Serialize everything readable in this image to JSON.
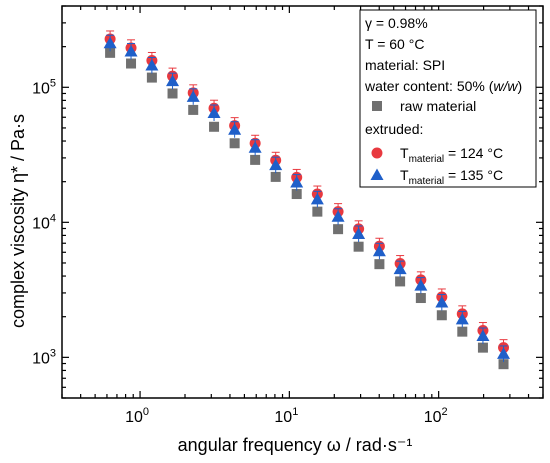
{
  "chart_data": {
    "type": "scatter",
    "xscale": "log",
    "yscale": "log",
    "xlim": [
      0.3,
      500
    ],
    "ylim": [
      500,
      400000
    ],
    "xlabel": "angular frequency ω / rad·s⁻¹",
    "ylabel": "complex viscosity η* / Pa·s",
    "grid": false,
    "legend_position": "top-right",
    "x_ticks": [
      {
        "value": 1,
        "base": "10",
        "exp": "0"
      },
      {
        "value": 10,
        "base": "10",
        "exp": "1"
      },
      {
        "value": 100,
        "base": "10",
        "exp": "2"
      }
    ],
    "y_ticks": [
      {
        "value": 1000,
        "base": "10",
        "exp": "3"
      },
      {
        "value": 10000,
        "base": "10",
        "exp": "4"
      },
      {
        "value": 100000,
        "base": "10",
        "exp": "5"
      }
    ],
    "legend": {
      "header_lines": [
        "γ = 0.98%",
        "T = 60 °C",
        "material: SPI"
      ],
      "water_prefix": "water content: 50% (",
      "water_italic": "w/w",
      "water_suffix": ")",
      "extruded_label": "extruded:",
      "t_symbol": "T",
      "t_subscript": "material"
    },
    "x": [
      0.63,
      0.87,
      1.2,
      1.65,
      2.27,
      3.13,
      4.3,
      5.9,
      8.1,
      11.2,
      15.4,
      21.2,
      29.1,
      40.1,
      55.2,
      76.0,
      105,
      144,
      198,
      272
    ],
    "series": [
      {
        "name": "raw material",
        "marker": "square",
        "color": "#707070",
        "values": [
          180000,
          150000,
          118000,
          90000,
          68000,
          51000,
          38500,
          29000,
          21700,
          16200,
          12000,
          8900,
          6600,
          4900,
          3650,
          2750,
          2050,
          1550,
          1180,
          890
        ]
      },
      {
        "name": "T_material = 124 °C",
        "label_value": "= 124 °C",
        "marker": "circle",
        "color": "#e8393f",
        "values": [
          228000,
          196000,
          158000,
          121000,
          91000,
          70000,
          52000,
          38500,
          28800,
          21500,
          16200,
          12000,
          8950,
          6650,
          4950,
          3750,
          2800,
          2100,
          1580,
          1180
        ]
      },
      {
        "name": "T_material = 135 °C",
        "label_value": "= 135 °C",
        "marker": "triangle",
        "color": "#1f5fc9",
        "values": [
          212000,
          184000,
          145000,
          111000,
          85000,
          64500,
          48500,
          35700,
          26500,
          19700,
          14800,
          11000,
          8200,
          6100,
          4500,
          3400,
          2550,
          1910,
          1440,
          1060
        ]
      }
    ]
  }
}
